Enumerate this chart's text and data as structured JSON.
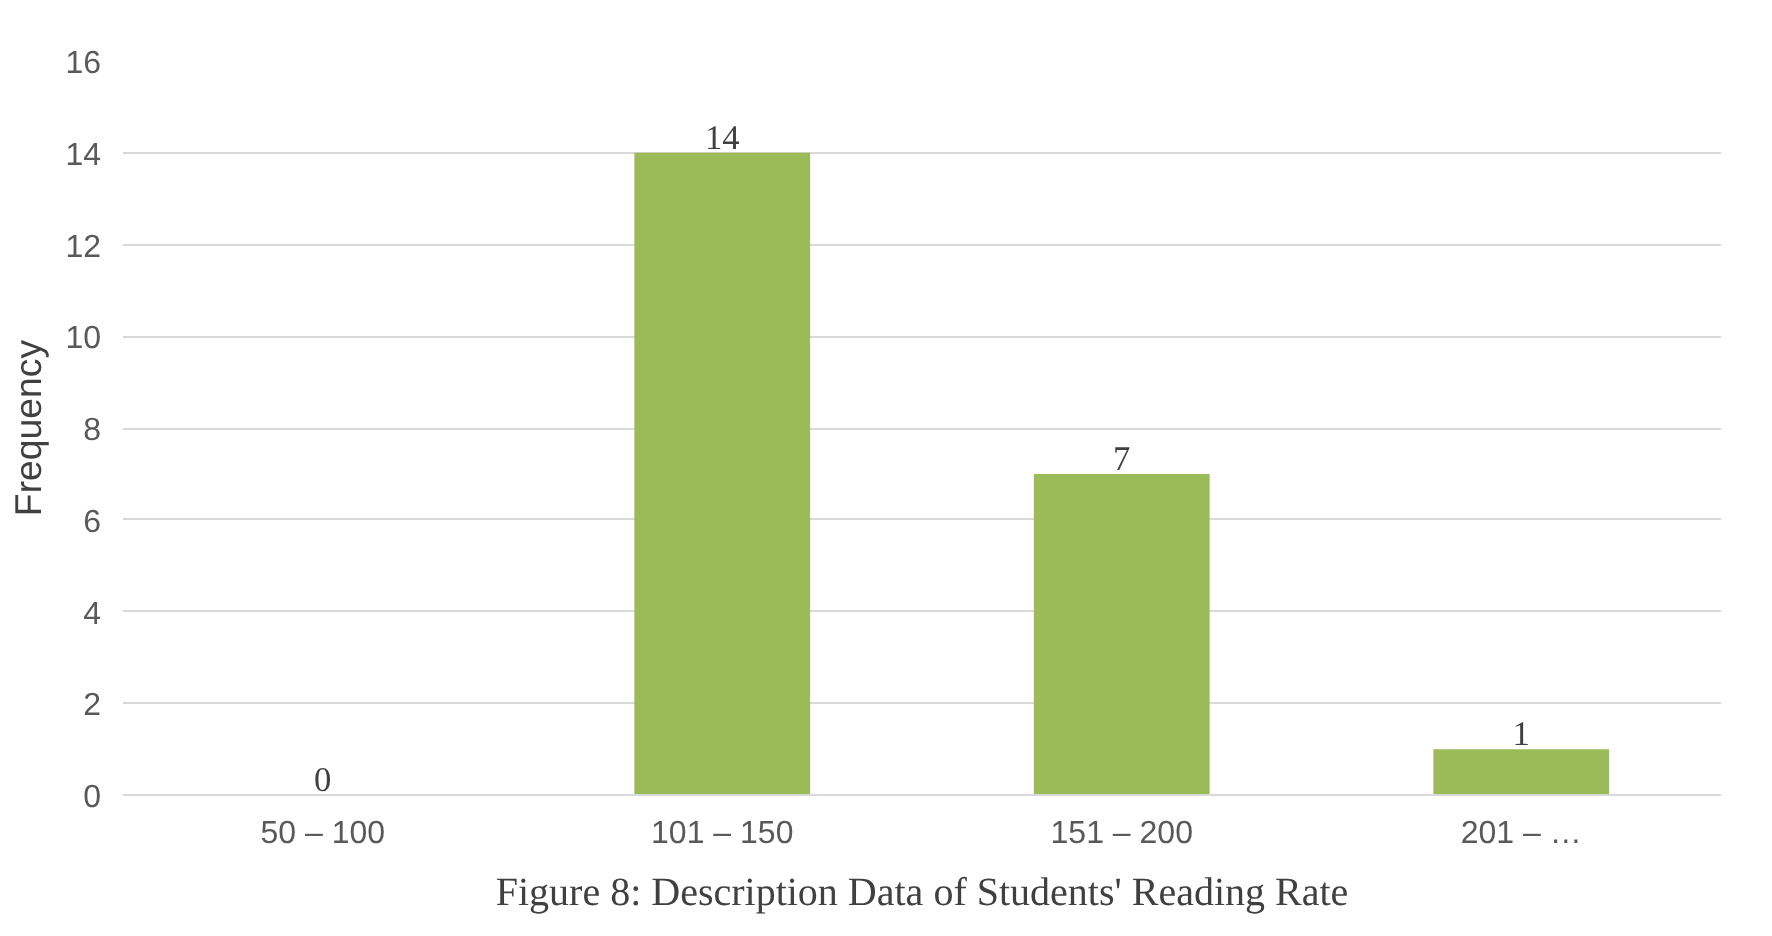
{
  "chart_data": {
    "type": "bar",
    "ylabel": "Frequency",
    "categories": [
      "50 – 100",
      "101 – 150",
      "151 – 200",
      "201 – …"
    ],
    "values": [
      0,
      14,
      7,
      1
    ],
    "color": "#9bbb59",
    "ylim": [
      0,
      16
    ],
    "yticks": [
      0,
      2,
      4,
      6,
      8,
      10,
      12,
      14,
      16
    ],
    "grid": "y",
    "data_labels": true,
    "annotations": [
      "Figure 8: Description Data of Students' Reading Rate"
    ]
  }
}
